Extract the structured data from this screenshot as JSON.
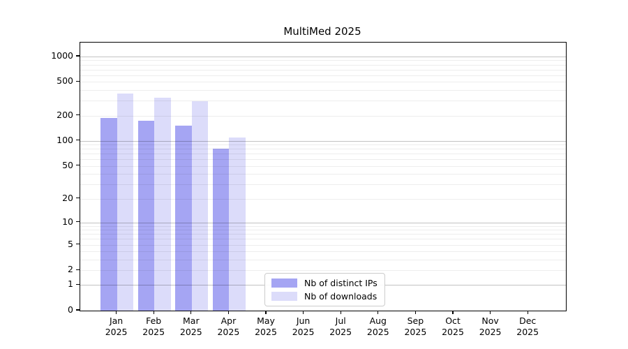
{
  "title": "MultiMed 2025",
  "chart_data": {
    "type": "bar",
    "title": "MultiMed 2025",
    "categories": [
      "Jan 2025",
      "Feb 2025",
      "Mar 2025",
      "Apr 2025",
      "May 2025",
      "Jun 2025",
      "Jul 2025",
      "Aug 2025",
      "Sep 2025",
      "Oct 2025",
      "Nov 2025",
      "Dec 2025"
    ],
    "series": [
      {
        "name": "Nb of distinct IPs",
        "color": "#a5a5f3",
        "values": [
          187,
          175,
          152,
          80,
          0,
          0,
          0,
          0,
          0,
          0,
          0,
          0
        ]
      },
      {
        "name": "Nb of downloads",
        "color": "#dcdcfa",
        "values": [
          363,
          326,
          295,
          110,
          0,
          0,
          0,
          0,
          0,
          0,
          0,
          0
        ]
      }
    ],
    "y_scale": "log10(value+1)",
    "y_ticks": [
      0,
      1,
      2,
      5,
      10,
      20,
      50,
      100,
      200,
      500,
      1000
    ],
    "y_major_gridlines": [
      1,
      10,
      100,
      1000
    ],
    "y_minor_gridlines": [
      2,
      3,
      4,
      5,
      6,
      7,
      8,
      9,
      20,
      30,
      40,
      50,
      60,
      70,
      80,
      90,
      200,
      300,
      400,
      500,
      600,
      700,
      800,
      900
    ],
    "y_top_value": 1460,
    "ylim": [
      0,
      1460
    ],
    "grid": true,
    "legend_position": "inside-bottom-center"
  },
  "legend": {
    "items": [
      {
        "label": "Nb of distinct IPs",
        "color": "#a5a5f3"
      },
      {
        "label": "Nb of downloads",
        "color": "#dcdcfa"
      }
    ]
  }
}
